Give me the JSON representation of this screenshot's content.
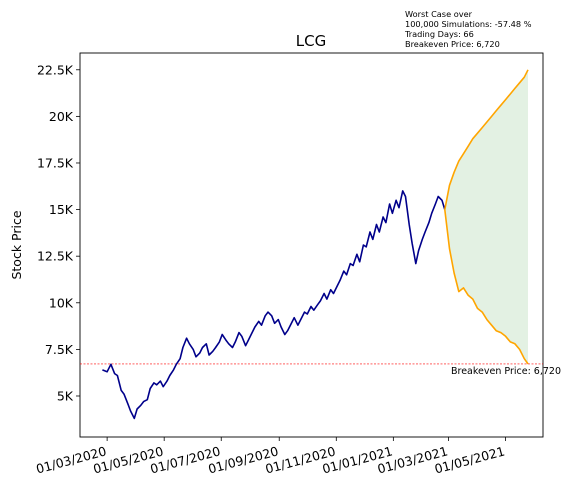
{
  "chart_data": {
    "type": "line",
    "title": "LCG",
    "ylabel": "Stock Price",
    "xlabel": "",
    "grid": false,
    "ylim": [
      2800,
      23400
    ],
    "y_ticks": [
      5000,
      7500,
      10000,
      12500,
      15000,
      17500,
      20000,
      22500
    ],
    "y_tick_labels": [
      "5K",
      "7.5K",
      "10K",
      "12.5K",
      "15K",
      "17.5K",
      "20K",
      "22.5K"
    ],
    "x_range": [
      "2020-02-01",
      "2021-06-10"
    ],
    "x_ticks": [
      "2020-03-01",
      "2020-05-01",
      "2020-07-01",
      "2020-09-01",
      "2020-11-01",
      "2021-01-01",
      "2021-03-01",
      "2021-05-01"
    ],
    "x_tick_labels": [
      "01/03/2020",
      "01/05/2020",
      "01/07/2020",
      "01/09/2020",
      "01/11/2020",
      "01/01/2021",
      "01/03/2021",
      "01/05/2021"
    ],
    "annotation_lines": [
      "Worst Case over",
      "100,000 Simulations: -57.48 %",
      "Trading Days: 66",
      "Breakeven Price: 6,720"
    ],
    "breakeven": {
      "value": 6720,
      "label": "Breakeven Price: 6,720",
      "color": "#ff0000"
    },
    "colors": {
      "history": "#00008b",
      "projection": "#ffa500",
      "band_fill": "#e3f1e3"
    },
    "history": {
      "x": [
        "2020-02-25",
        "2020-03-01",
        "2020-03-05",
        "2020-03-09",
        "2020-03-12",
        "2020-03-16",
        "2020-03-19",
        "2020-03-23",
        "2020-03-26",
        "2020-03-30",
        "2020-04-02",
        "2020-04-06",
        "2020-04-09",
        "2020-04-13",
        "2020-04-16",
        "2020-04-20",
        "2020-04-23",
        "2020-04-27",
        "2020-04-30",
        "2020-05-04",
        "2020-05-07",
        "2020-05-11",
        "2020-05-14",
        "2020-05-18",
        "2020-05-21",
        "2020-05-25",
        "2020-05-28",
        "2020-06-01",
        "2020-06-04",
        "2020-06-08",
        "2020-06-11",
        "2020-06-15",
        "2020-06-18",
        "2020-06-22",
        "2020-06-25",
        "2020-06-29",
        "2020-07-02",
        "2020-07-06",
        "2020-07-09",
        "2020-07-13",
        "2020-07-16",
        "2020-07-20",
        "2020-07-23",
        "2020-07-27",
        "2020-07-30",
        "2020-08-03",
        "2020-08-06",
        "2020-08-10",
        "2020-08-13",
        "2020-08-17",
        "2020-08-20",
        "2020-08-24",
        "2020-08-27",
        "2020-08-31",
        "2020-09-03",
        "2020-09-07",
        "2020-09-10",
        "2020-09-14",
        "2020-09-17",
        "2020-09-21",
        "2020-09-24",
        "2020-09-28",
        "2020-10-01",
        "2020-10-05",
        "2020-10-08",
        "2020-10-12",
        "2020-10-15",
        "2020-10-19",
        "2020-10-22",
        "2020-10-26",
        "2020-10-29",
        "2020-11-02",
        "2020-11-05",
        "2020-11-09",
        "2020-11-12",
        "2020-11-16",
        "2020-11-19",
        "2020-11-23",
        "2020-11-26",
        "2020-11-30",
        "2020-12-03",
        "2020-12-07",
        "2020-12-10",
        "2020-12-14",
        "2020-12-17",
        "2020-12-21",
        "2020-12-24",
        "2020-12-28",
        "2020-12-31",
        "2021-01-04",
        "2021-01-07",
        "2021-01-11",
        "2021-01-14",
        "2021-01-18",
        "2021-01-21",
        "2021-01-25",
        "2021-01-28",
        "2021-02-01",
        "2021-02-04",
        "2021-02-08",
        "2021-02-11",
        "2021-02-15",
        "2021-02-18",
        "2021-02-22",
        "2021-02-25"
      ],
      "y": [
        6400,
        6300,
        6700,
        6200,
        6100,
        5300,
        5100,
        4600,
        4200,
        3800,
        4300,
        4500,
        4700,
        4800,
        5400,
        5700,
        5600,
        5800,
        5500,
        5800,
        6100,
        6400,
        6700,
        7000,
        7600,
        8100,
        7800,
        7500,
        7100,
        7300,
        7600,
        7800,
        7200,
        7400,
        7600,
        7900,
        8300,
        8000,
        7800,
        7600,
        7900,
        8400,
        8200,
        7700,
        8000,
        8400,
        8700,
        9000,
        8800,
        9300,
        9500,
        9300,
        8900,
        9100,
        8700,
        8300,
        8500,
        8900,
        9200,
        8800,
        9100,
        9500,
        9400,
        9800,
        9600,
        9900,
        10100,
        10500,
        10200,
        10700,
        10500,
        10900,
        11200,
        11700,
        11500,
        12100,
        12000,
        12600,
        12200,
        13100,
        13000,
        13800,
        13400,
        14200,
        13800,
        14600,
        14300,
        15300,
        14800,
        15500,
        15100,
        16000,
        15700,
        14200,
        13200,
        12100,
        12800,
        13400,
        13800,
        14300,
        14800,
        15300,
        15700,
        15500,
        15000
      ]
    },
    "projection_best": {
      "x": [
        "2021-02-25",
        "2021-03-02",
        "2021-03-07",
        "2021-03-12",
        "2021-03-17",
        "2021-03-22",
        "2021-03-27",
        "2021-04-01",
        "2021-04-06",
        "2021-04-11",
        "2021-04-16",
        "2021-04-21",
        "2021-04-26",
        "2021-05-01",
        "2021-05-06",
        "2021-05-11",
        "2021-05-16",
        "2021-05-21",
        "2021-05-25"
      ],
      "y": [
        15000,
        16300,
        17000,
        17600,
        18000,
        18400,
        18800,
        19100,
        19400,
        19700,
        20000,
        20300,
        20600,
        20900,
        21200,
        21500,
        21800,
        22100,
        22500
      ]
    },
    "projection_worst": {
      "x": [
        "2021-02-25",
        "2021-03-02",
        "2021-03-07",
        "2021-03-12",
        "2021-03-17",
        "2021-03-22",
        "2021-03-27",
        "2021-04-01",
        "2021-04-06",
        "2021-04-11",
        "2021-04-16",
        "2021-04-21",
        "2021-04-26",
        "2021-05-01",
        "2021-05-06",
        "2021-05-11",
        "2021-05-16",
        "2021-05-21",
        "2021-05-25"
      ],
      "y": [
        15000,
        12900,
        11600,
        10600,
        10800,
        10400,
        10200,
        9700,
        9500,
        9100,
        8800,
        8500,
        8400,
        8200,
        7900,
        7800,
        7500,
        7000,
        6720
      ]
    }
  }
}
